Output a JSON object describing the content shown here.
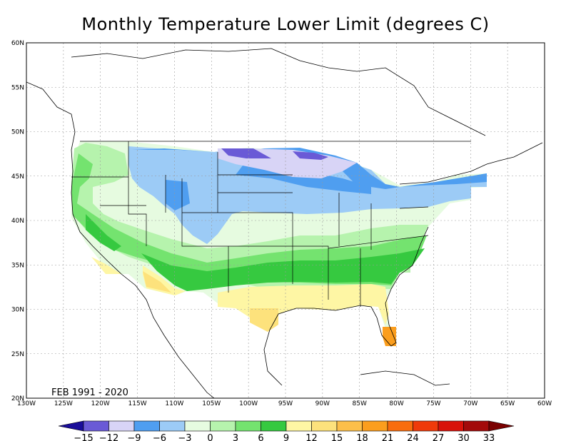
{
  "title": "Monthly Temperature Lower Limit (degrees C)",
  "period_label": "FEB 1991 - 2020",
  "map": {
    "lon_range": [
      -130,
      -60
    ],
    "lat_range": [
      20,
      60
    ],
    "grid": true,
    "lat_ticks": [
      "60N",
      "55N",
      "50N",
      "45N",
      "40N",
      "35N",
      "30N",
      "25N",
      "20N"
    ],
    "lon_ticks": [
      "130W",
      "125W",
      "120W",
      "115W",
      "110W",
      "105W",
      "100W",
      "95W",
      "90W",
      "85W",
      "80W",
      "75W",
      "70W",
      "65W",
      "60W"
    ]
  },
  "colorbar": {
    "labels": [
      "-15",
      "-12",
      "-9",
      "-6",
      "-3",
      "0",
      "3",
      "6",
      "9",
      "12",
      "15",
      "18",
      "21",
      "24",
      "27",
      "30",
      "33"
    ],
    "colors": [
      "#1a0d99",
      "#6a5ad6",
      "#d8d4f6",
      "#4f9ef0",
      "#9ccbf6",
      "#e6fbe0",
      "#b6f3ad",
      "#74e36f",
      "#36c940",
      "#fef6a4",
      "#fde27c",
      "#fcbf4a",
      "#fb9e1e",
      "#f96d0e",
      "#ef3a0a",
      "#d8120a",
      "#a30a0a",
      "#7a0000"
    ]
  }
}
